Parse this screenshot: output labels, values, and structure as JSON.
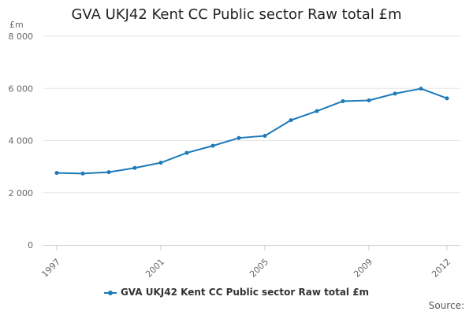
{
  "chart_data": {
    "type": "line",
    "title": "GVA UKJ42 Kent CC Public sector Raw total £m",
    "ylabel": "£m",
    "xlabel": "",
    "x": [
      1997,
      1998,
      1999,
      2000,
      2001,
      2002,
      2003,
      2004,
      2005,
      2006,
      2007,
      2008,
      2009,
      2010,
      2011,
      2012
    ],
    "series": [
      {
        "name": "GVA UKJ42 Kent CC Public sector Raw total £m",
        "color": "#1b7ab9",
        "values": [
          2760,
          2735,
          2790,
          2950,
          3150,
          3530,
          3800,
          4100,
          4180,
          4780,
          5130,
          5510,
          5540,
          5800,
          5990,
          5620
        ]
      }
    ],
    "x_tick_labels": [
      "1997",
      "2001",
      "2005",
      "2009",
      "2012"
    ],
    "y_tick_values": [
      0,
      2000,
      4000,
      6000,
      8000
    ],
    "y_tick_labels": [
      "0",
      "2 000",
      "4 000",
      "6 000",
      "8 000"
    ],
    "ylim": [
      0,
      8000
    ],
    "xlim": [
      1997,
      2012
    ],
    "grid": "horizontal",
    "legend": "bottom"
  },
  "source_label": "Source:"
}
